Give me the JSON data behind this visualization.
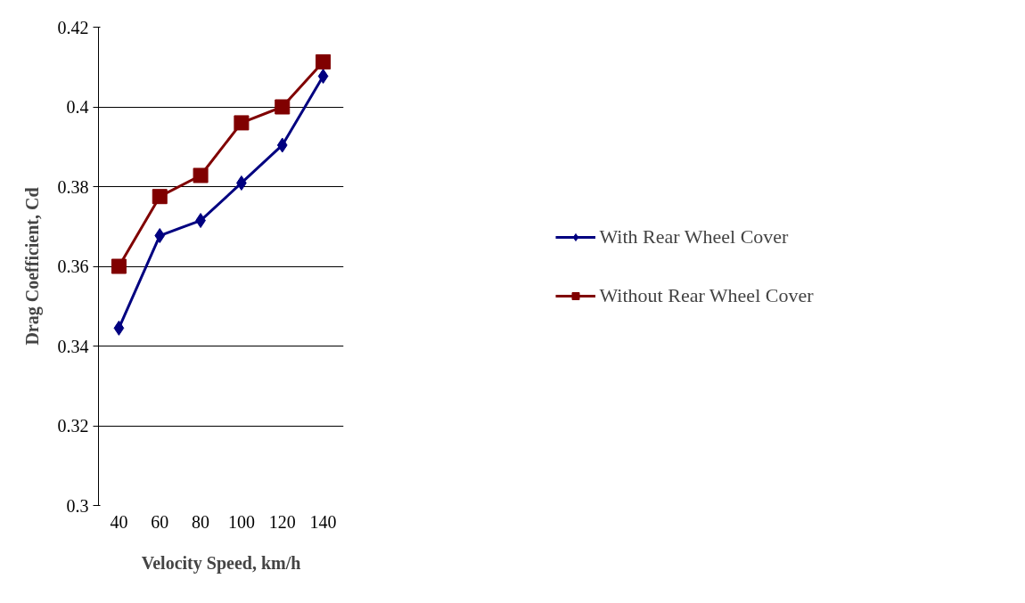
{
  "chart_data": {
    "type": "line",
    "xlabel": "Velocity Speed, km/h",
    "ylabel": "Drag Coefficient, Cd",
    "categories": [
      "40",
      "60",
      "80",
      "100",
      "120",
      "140"
    ],
    "series": [
      {
        "name": "With Rear Wheel Cover",
        "color": "#000080",
        "marker": "diamond",
        "values": [
          0.3445,
          0.3677,
          0.3715,
          0.3809,
          0.3904,
          0.4077
        ]
      },
      {
        "name": "Without Rear Wheel Cover",
        "color": "#800000",
        "marker": "square",
        "values": [
          0.36,
          0.3775,
          0.3828,
          0.396,
          0.4,
          0.4113
        ]
      }
    ],
    "ylim": [
      0.3,
      0.42
    ],
    "yticks": [
      0.3,
      0.32,
      0.34,
      0.36,
      0.38,
      0.4,
      0.42
    ],
    "grid": "y",
    "legend": "right"
  }
}
